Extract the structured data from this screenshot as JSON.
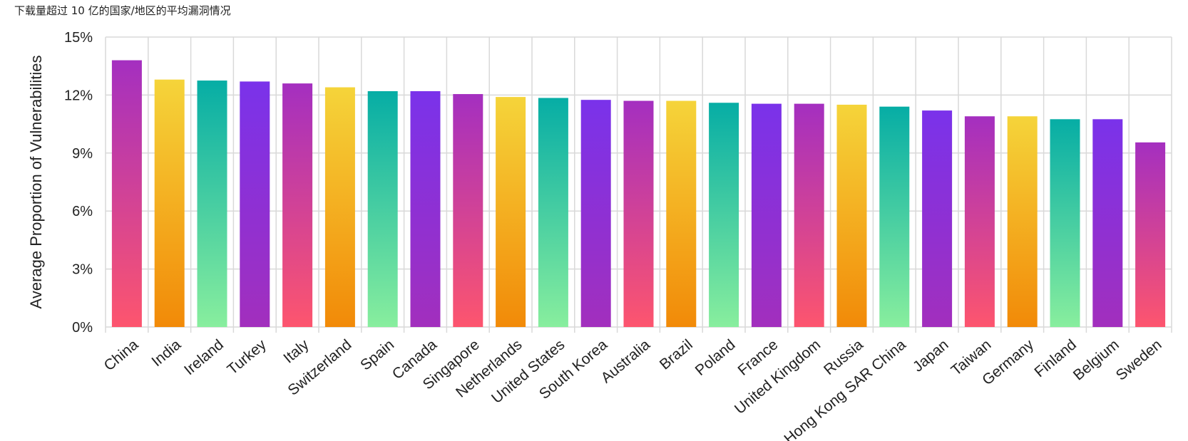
{
  "page": {
    "title": "下载量超过 10 亿的国家/地区的平均漏洞情况"
  },
  "chart_data": {
    "type": "bar",
    "title": "下载量超过 10 亿的国家/地区的平均漏洞情况",
    "xlabel": "",
    "ylabel": "Average Proportion of Vulnerabilities",
    "ylim": [
      0,
      15
    ],
    "yticks": [
      "0%",
      "3%",
      "6%",
      "9%",
      "12%",
      "15%"
    ],
    "grid": true,
    "categories": [
      "China",
      "India",
      "Ireland",
      "Turkey",
      "Italy",
      "Switzerland",
      "Spain",
      "Canada",
      "Singapore",
      "Netherlands",
      "United States",
      "South Korea",
      "Australia",
      "Brazil",
      "Poland",
      "France",
      "United Kingdom",
      "Russia",
      "Hong Kong SAR China",
      "Japan",
      "Taiwan",
      "Germany",
      "Finland",
      "Belgium",
      "Sweden"
    ],
    "values": [
      13.8,
      12.8,
      12.75,
      12.7,
      12.6,
      12.4,
      12.2,
      12.2,
      12.05,
      11.9,
      11.85,
      11.75,
      11.7,
      11.7,
      11.6,
      11.55,
      11.55,
      11.5,
      11.4,
      11.2,
      10.9,
      10.9,
      10.75,
      10.75,
      9.55
    ],
    "gradients": [
      {
        "name": "magenta",
        "top": "#a42fc0",
        "bottom": "#fd556e"
      },
      {
        "name": "orange",
        "top": "#f5d43a",
        "bottom": "#f28a08"
      },
      {
        "name": "teal",
        "top": "#06ada5",
        "bottom": "#88ee9e"
      },
      {
        "name": "purple",
        "top": "#7a32ea",
        "bottom": "#a22fbd"
      }
    ]
  }
}
